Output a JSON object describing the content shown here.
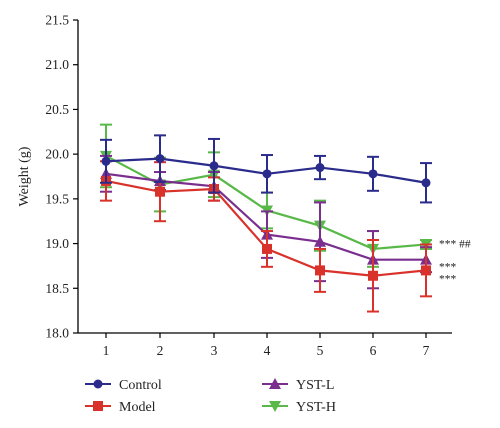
{
  "chart_data": {
    "type": "line",
    "title": "",
    "xlabel": "",
    "ylabel": "Weight (g)",
    "x": [
      1,
      2,
      3,
      4,
      5,
      6,
      7
    ],
    "xticks": [
      "1",
      "2",
      "3",
      "4",
      "5",
      "6",
      "7"
    ],
    "ylim": [
      18.0,
      21.5
    ],
    "yticks": [
      "18.0",
      "18.5",
      "19.0",
      "19.5",
      "20.0",
      "20.5",
      "21.0",
      "21.5"
    ],
    "grid": false,
    "legend_position": "bottom",
    "series": [
      {
        "name": "Control",
        "color": "#2b2b8c",
        "marker": "circle",
        "values": [
          19.92,
          19.95,
          19.87,
          19.78,
          19.85,
          19.78,
          19.68
        ],
        "errors": [
          0.24,
          0.26,
          0.3,
          0.21,
          0.13,
          0.19,
          0.22
        ]
      },
      {
        "name": "Model",
        "color": "#d9322a",
        "marker": "square",
        "values": [
          19.7,
          19.58,
          19.61,
          18.94,
          18.7,
          18.64,
          18.7
        ],
        "errors": [
          0.22,
          0.33,
          0.13,
          0.2,
          0.24,
          0.4,
          0.29
        ]
      },
      {
        "name": "YST-L",
        "color": "#7a2f8f",
        "marker": "triangle-up",
        "values": [
          19.78,
          19.7,
          19.64,
          19.1,
          19.02,
          18.82,
          18.82
        ],
        "errors": [
          0.2,
          0.1,
          0.16,
          0.26,
          0.44,
          0.32,
          0.14
        ]
      },
      {
        "name": "YST-H",
        "color": "#58b848",
        "marker": "triangle-down",
        "values": [
          19.98,
          19.66,
          19.77,
          19.37,
          19.2,
          18.94,
          18.99
        ],
        "errors": [
          0.35,
          0.3,
          0.25,
          0.2,
          0.28,
          0.2,
          0.05
        ]
      }
    ],
    "annotations": [
      {
        "x": 7,
        "y": 18.99,
        "text": "*** ##"
      },
      {
        "x": 7,
        "y": 18.82,
        "text": "***"
      },
      {
        "x": 7,
        "y": 18.7,
        "text": "***"
      }
    ]
  }
}
